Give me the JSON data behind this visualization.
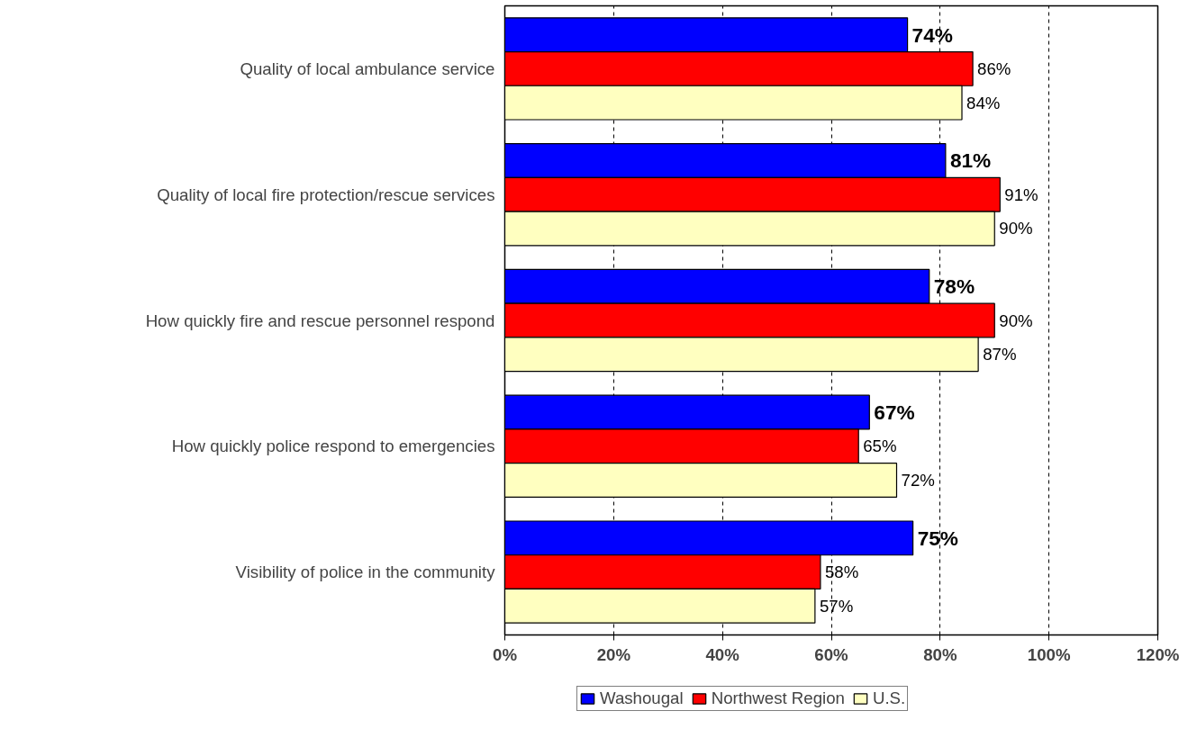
{
  "chart_data": {
    "type": "bar",
    "orientation": "horizontal",
    "categories": [
      "Quality of local ambulance service",
      "Quality of local fire protection/rescue services",
      "How quickly fire and rescue personnel respond",
      "How quickly police respond to emergencies",
      "Visibility of police in the community"
    ],
    "series": [
      {
        "name": "Washougal",
        "color": "#0000ff",
        "values": [
          74,
          81,
          78,
          67,
          75
        ],
        "value_labels": [
          "74%",
          "81%",
          "78%",
          "67%",
          "75%"
        ]
      },
      {
        "name": "Northwest Region",
        "color": "#ff0000",
        "values": [
          86,
          91,
          90,
          65,
          58
        ],
        "value_labels": [
          "86%",
          "91%",
          "90%",
          "65%",
          "58%"
        ]
      },
      {
        "name": "U.S.",
        "color": "#ffffc0",
        "values": [
          84,
          90,
          87,
          72,
          57
        ],
        "value_labels": [
          "84%",
          "90%",
          "87%",
          "72%",
          "57%"
        ]
      }
    ],
    "xlim": [
      0,
      120
    ],
    "xticks": [
      {
        "value": 0,
        "label": "0%"
      },
      {
        "value": 20,
        "label": "20%"
      },
      {
        "value": 40,
        "label": "40%"
      },
      {
        "value": 60,
        "label": "60%"
      },
      {
        "value": 80,
        "label": "80%"
      },
      {
        "value": 100,
        "label": "100%"
      },
      {
        "value": 120,
        "label": "120%"
      }
    ],
    "grid": "x",
    "legend": "bottom"
  }
}
